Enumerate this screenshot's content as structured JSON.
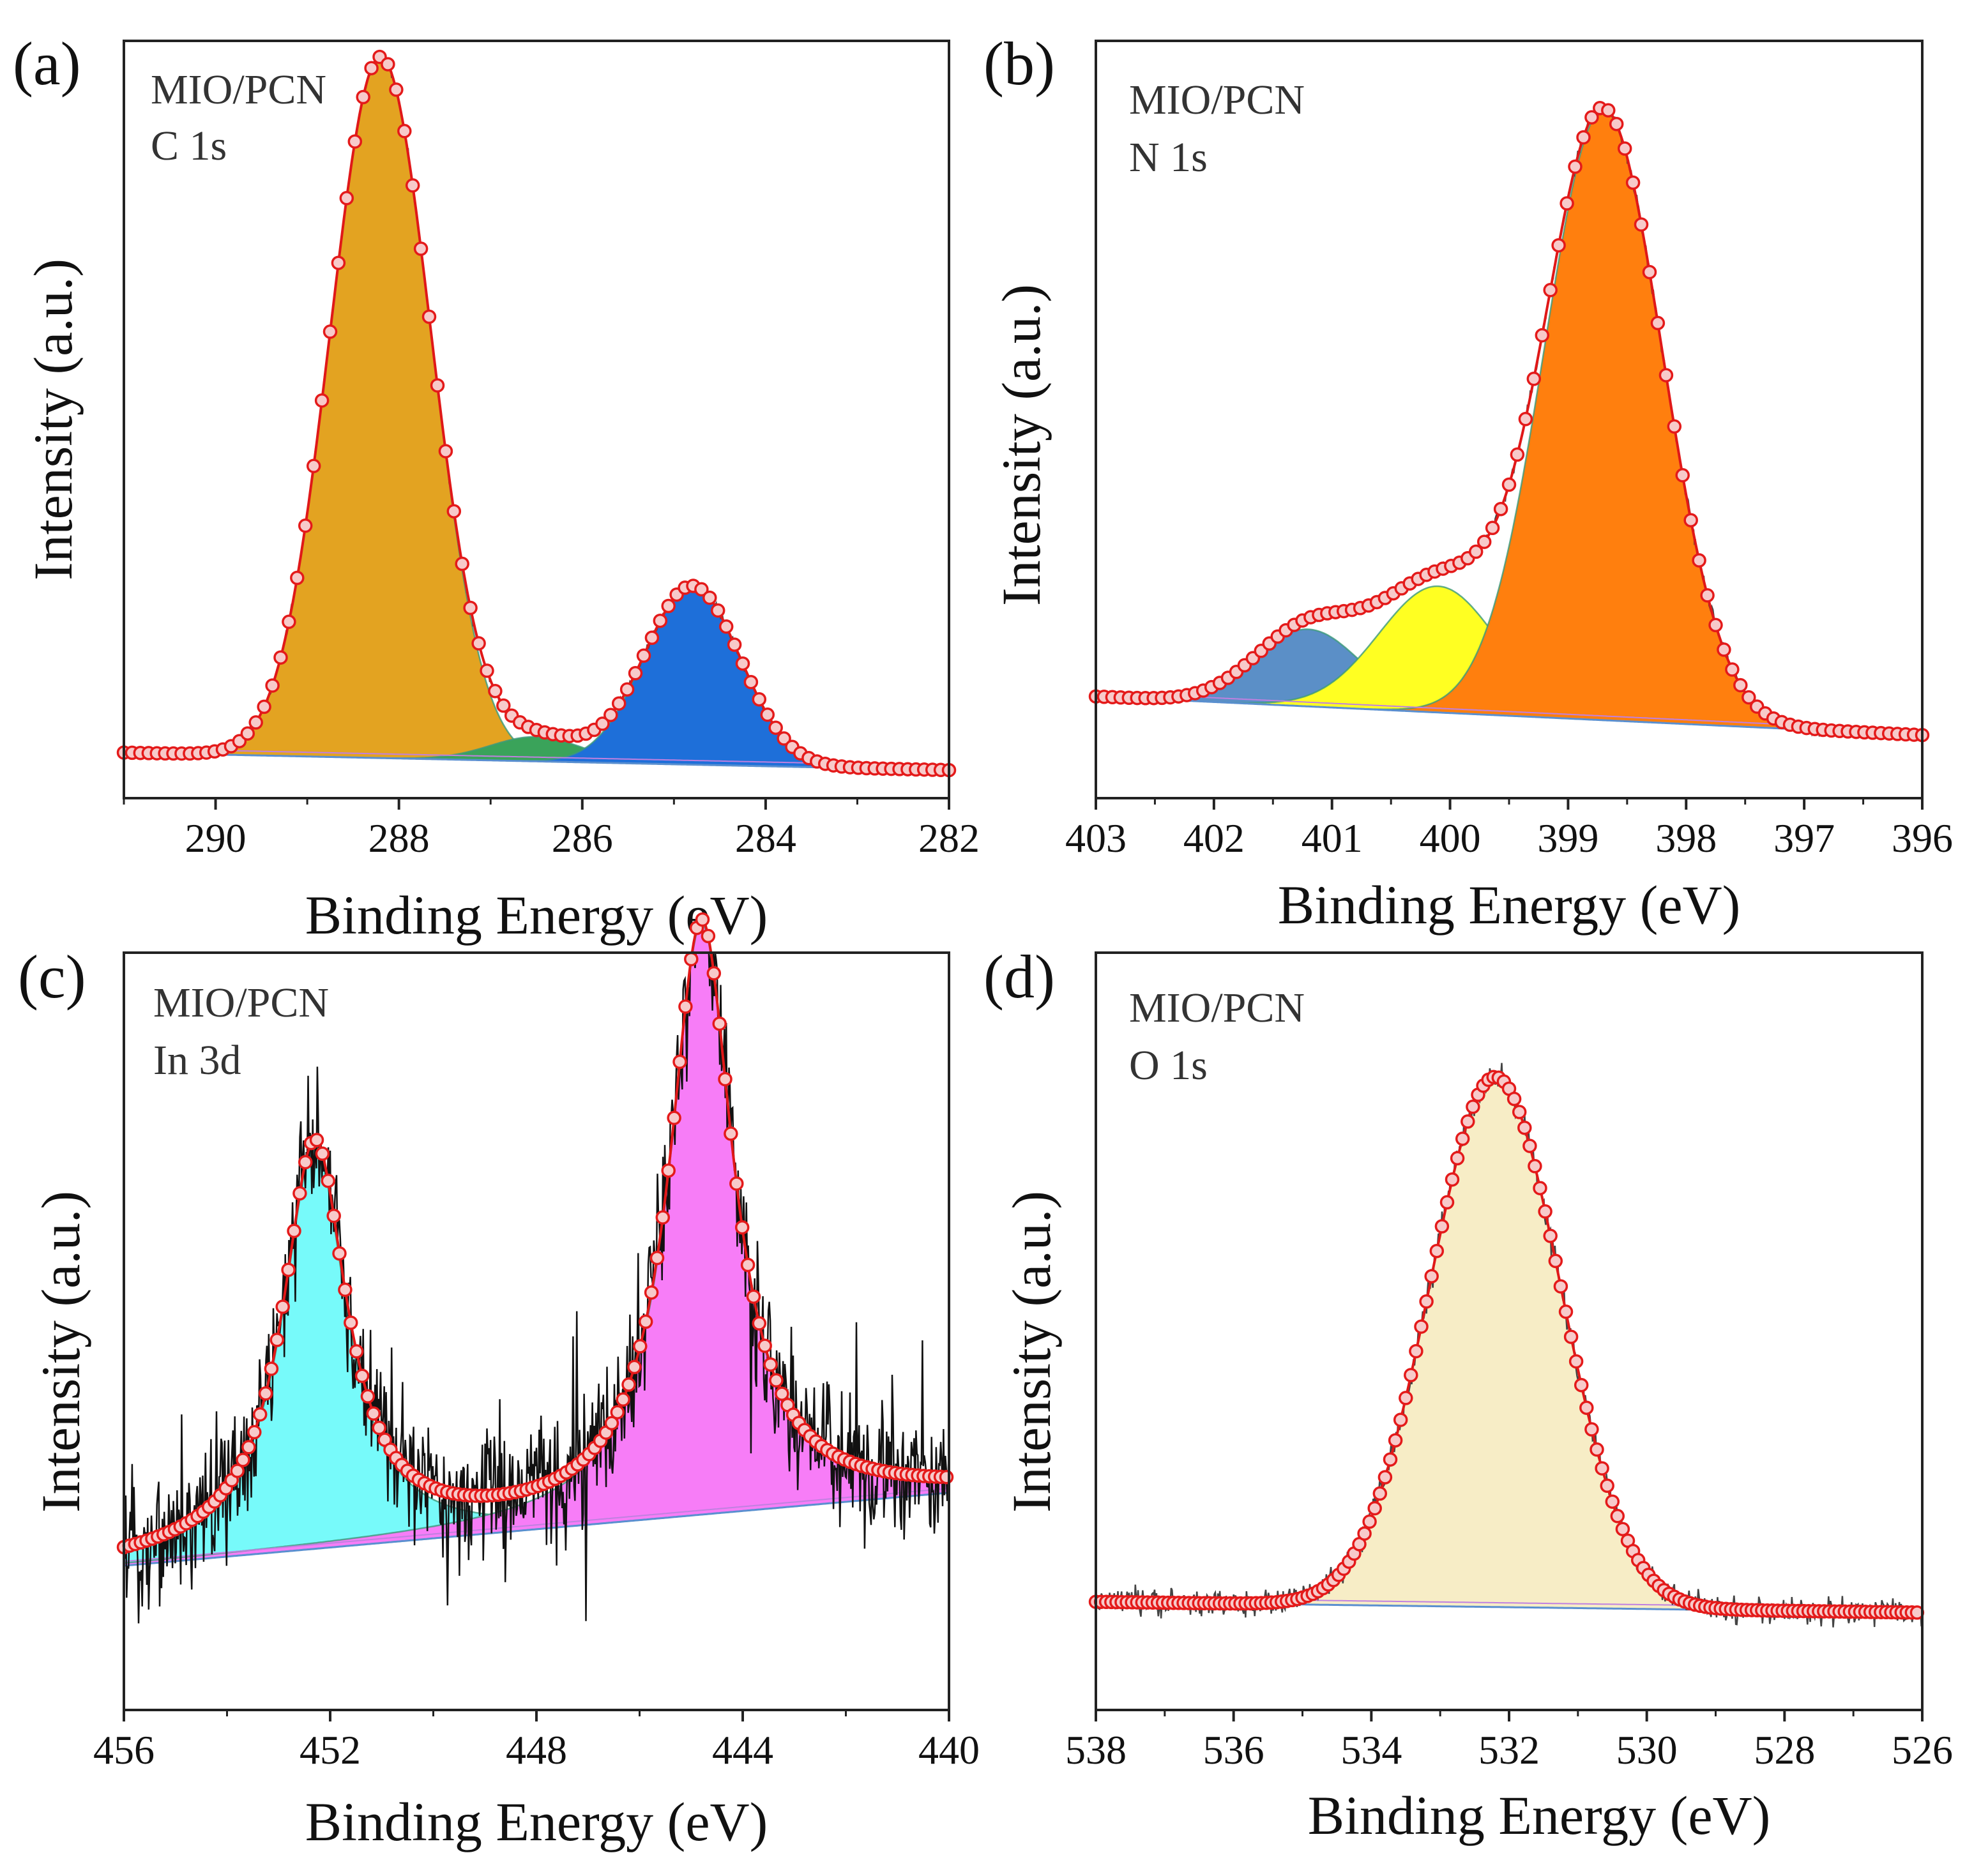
{
  "figure": {
    "panels_order": [
      "a",
      "b",
      "c",
      "d"
    ]
  },
  "chart_data": [
    {
      "id": "a",
      "type": "line",
      "panel_label": "(a)",
      "sample": "MIO/PCN",
      "region": "C 1s",
      "xlabel": "Binding Energy (eV)",
      "ylabel": "Intensity (a.u.)",
      "xlim": [
        291,
        282
      ],
      "ylim": [
        0,
        1.08
      ],
      "xticks": [
        290,
        288,
        286,
        284,
        282
      ],
      "minor_xticks": [
        291,
        289,
        287,
        285,
        283
      ],
      "baseline": [
        [
          291,
          0.065
        ],
        [
          282,
          0.04
        ]
      ],
      "peaks": [
        {
          "center": 288.2,
          "height": 1.0,
          "sigma": 0.55,
          "color": "#E3A321"
        },
        {
          "center": 286.5,
          "height": 0.035,
          "sigma": 0.5,
          "color": "#3AA35A"
        },
        {
          "center": 284.8,
          "height": 0.255,
          "sigma": 0.52,
          "color": "#1E6FD9"
        }
      ],
      "noise": 0.005,
      "marker_step": 0.09
    },
    {
      "id": "b",
      "type": "line",
      "panel_label": "(b)",
      "sample": "MIO/PCN",
      "region": "N 1s",
      "xlabel": "Binding Energy (eV)",
      "ylabel": "Intensity (a.u.)",
      "xlim": [
        403,
        396
      ],
      "ylim": [
        0,
        1.08
      ],
      "xticks": [
        403,
        402,
        401,
        400,
        399,
        398,
        397,
        396
      ],
      "minor_xticks": [
        402.5,
        401.5,
        400.5,
        399.5,
        398.5,
        397.5,
        396.5
      ],
      "baseline": [
        [
          403,
          0.145
        ],
        [
          396,
          0.09
        ]
      ],
      "peaks": [
        {
          "center": 401.2,
          "height": 0.11,
          "sigma": 0.45,
          "color": "#5B8FC7"
        },
        {
          "center": 400.1,
          "height": 0.18,
          "sigma": 0.5,
          "color": "#FFFF22"
        },
        {
          "center": 398.7,
          "height": 0.87,
          "sigma": 0.5,
          "color": "#FF7F0E"
        }
      ],
      "noise": 0.007,
      "marker_step": 0.07
    },
    {
      "id": "c",
      "type": "line",
      "panel_label": "(c)",
      "sample": "MIO/PCN",
      "region": "In 3d",
      "xlabel": "Binding Energy (eV)",
      "ylabel": "Intensity (a.u.)",
      "xlim": [
        456,
        440
      ],
      "ylim": [
        0,
        1.05
      ],
      "xticks": [
        456,
        452,
        448,
        444,
        440
      ],
      "minor_xticks": [
        454,
        450,
        446,
        442
      ],
      "baseline": [
        [
          456,
          0.2
        ],
        [
          440.2,
          0.3
        ]
      ],
      "peaks": [
        {
          "center": 452.3,
          "height": 0.56,
          "gamma": 0.75,
          "color": "#77FAFA"
        },
        {
          "center": 444.8,
          "height": 0.82,
          "gamma": 0.75,
          "color": "#F77DF7"
        }
      ],
      "noise": 0.09,
      "marker_step": 0.11
    },
    {
      "id": "d",
      "type": "line",
      "panel_label": "(d)",
      "sample": "MIO/PCN",
      "region": "O 1s",
      "xlabel": "Binding Energy (eV)",
      "ylabel": "Intensity (a.u.)",
      "xlim": [
        538,
        526
      ],
      "ylim": [
        0,
        1.05
      ],
      "xticks": [
        538,
        536,
        534,
        532,
        530,
        528,
        526
      ],
      "minor_xticks": [
        537,
        535,
        533,
        531,
        529,
        527
      ],
      "baseline": [
        [
          538,
          0.15
        ],
        [
          526,
          0.135
        ]
      ],
      "peaks": [
        {
          "center": 532.2,
          "height": 0.735,
          "sigma": 0.95,
          "color": "#F7EDC6"
        }
      ],
      "noise": 0.018,
      "marker_step": 0.075
    }
  ]
}
